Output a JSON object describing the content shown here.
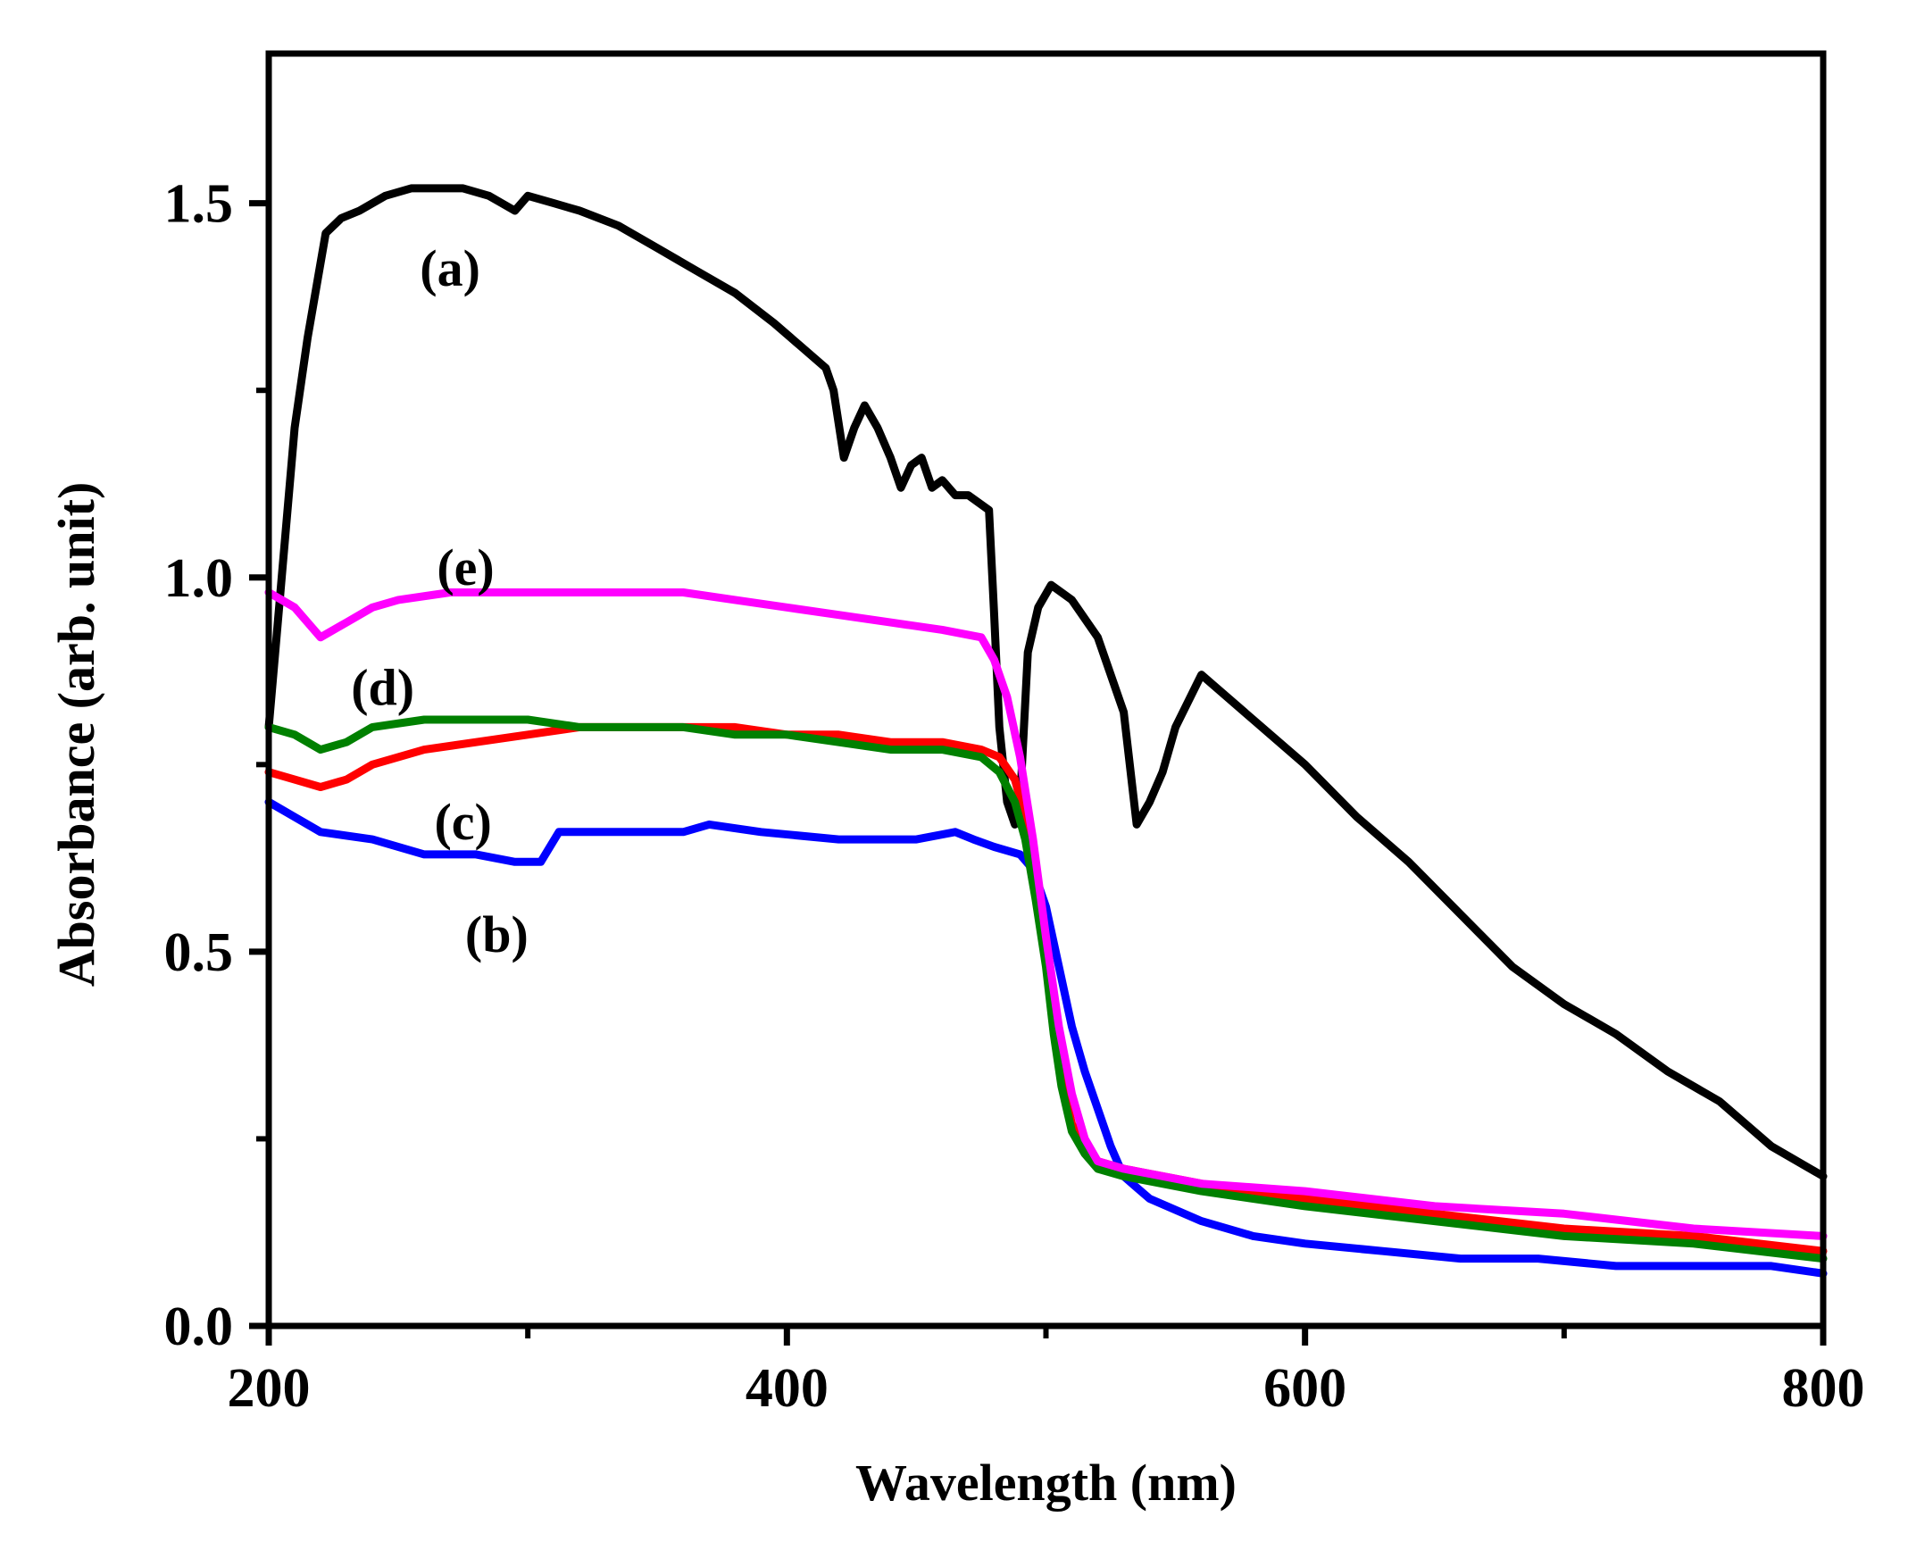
{
  "chart_data": {
    "type": "line",
    "title": "",
    "xlabel": "Wavelength (nm)",
    "ylabel": "Absorbance (arb. unit)",
    "xlim": [
      200,
      800
    ],
    "ylim": [
      0,
      1.7
    ],
    "x_ticks": [
      "200",
      "400",
      "600",
      "800"
    ],
    "y_ticks": [
      "0.0",
      "0.5",
      "1.0",
      "1.5"
    ],
    "x_tick_values": [
      200,
      400,
      600,
      800
    ],
    "y_tick_values": [
      0,
      0.5,
      1.0,
      1.5
    ],
    "grid": false,
    "legend": "inline labels",
    "series": [
      {
        "name": "(a)",
        "color": "#000000",
        "x": [
          200,
          205,
          210,
          215,
          222,
          228,
          235,
          245,
          255,
          265,
          275,
          285,
          290,
          295,
          300,
          310,
          320,
          335,
          350,
          365,
          380,
          395,
          405,
          415,
          418,
          422,
          426,
          430,
          435,
          440,
          444,
          448,
          452,
          456,
          460,
          465,
          470,
          478,
          480,
          482,
          485,
          488,
          490,
          493,
          497,
          502,
          510,
          520,
          530,
          535,
          540,
          545,
          550,
          560,
          580,
          600,
          620,
          640,
          660,
          680,
          700,
          720,
          740,
          760,
          780,
          800
        ],
        "values": [
          0.8,
          1.0,
          1.2,
          1.32,
          1.46,
          1.48,
          1.49,
          1.51,
          1.52,
          1.52,
          1.52,
          1.51,
          1.5,
          1.49,
          1.51,
          1.5,
          1.49,
          1.47,
          1.44,
          1.41,
          1.38,
          1.34,
          1.31,
          1.28,
          1.25,
          1.16,
          1.2,
          1.23,
          1.2,
          1.16,
          1.12,
          1.15,
          1.16,
          1.12,
          1.13,
          1.11,
          1.11,
          1.09,
          0.95,
          0.8,
          0.7,
          0.67,
          0.7,
          0.9,
          0.96,
          0.99,
          0.97,
          0.92,
          0.82,
          0.67,
          0.7,
          0.74,
          0.8,
          0.87,
          0.81,
          0.75,
          0.68,
          0.62,
          0.55,
          0.48,
          0.43,
          0.39,
          0.34,
          0.3,
          0.24,
          0.2
        ]
      },
      {
        "name": "(b)",
        "color": "#0000ff",
        "x": [
          200,
          210,
          220,
          240,
          260,
          280,
          295,
          305,
          312,
          330,
          360,
          370,
          390,
          420,
          450,
          465,
          472,
          480,
          490,
          495,
          500,
          505,
          510,
          515,
          520,
          525,
          530,
          540,
          560,
          580,
          600,
          630,
          660,
          690,
          720,
          750,
          780,
          800
        ],
        "values": [
          0.7,
          0.68,
          0.66,
          0.65,
          0.63,
          0.63,
          0.62,
          0.62,
          0.66,
          0.66,
          0.66,
          0.67,
          0.66,
          0.65,
          0.65,
          0.66,
          0.65,
          0.64,
          0.63,
          0.61,
          0.56,
          0.48,
          0.4,
          0.34,
          0.29,
          0.24,
          0.2,
          0.17,
          0.14,
          0.12,
          0.11,
          0.1,
          0.09,
          0.09,
          0.08,
          0.08,
          0.08,
          0.07
        ]
      },
      {
        "name": "(c)",
        "color": "#ff0000",
        "x": [
          200,
          210,
          220,
          230,
          240,
          260,
          280,
          300,
          320,
          340,
          360,
          380,
          400,
          420,
          440,
          460,
          475,
          482,
          488,
          492,
          496,
          500,
          503,
          506,
          510,
          515,
          520,
          530,
          560,
          600,
          650,
          700,
          750,
          800
        ],
        "values": [
          0.74,
          0.73,
          0.72,
          0.73,
          0.75,
          0.77,
          0.78,
          0.79,
          0.8,
          0.8,
          0.8,
          0.8,
          0.79,
          0.79,
          0.78,
          0.78,
          0.77,
          0.76,
          0.73,
          0.68,
          0.6,
          0.5,
          0.4,
          0.33,
          0.27,
          0.24,
          0.22,
          0.21,
          0.19,
          0.17,
          0.15,
          0.13,
          0.12,
          0.1
        ]
      },
      {
        "name": "(d)",
        "color": "#008000",
        "x": [
          200,
          210,
          220,
          230,
          240,
          260,
          280,
          300,
          320,
          340,
          360,
          380,
          400,
          420,
          440,
          460,
          475,
          482,
          488,
          492,
          496,
          500,
          503,
          506,
          510,
          515,
          520,
          530,
          560,
          600,
          650,
          700,
          750,
          800
        ],
        "values": [
          0.8,
          0.79,
          0.77,
          0.78,
          0.8,
          0.81,
          0.81,
          0.81,
          0.8,
          0.8,
          0.8,
          0.79,
          0.79,
          0.78,
          0.77,
          0.77,
          0.76,
          0.74,
          0.7,
          0.65,
          0.57,
          0.48,
          0.39,
          0.32,
          0.26,
          0.23,
          0.21,
          0.2,
          0.18,
          0.16,
          0.14,
          0.12,
          0.11,
          0.09
        ]
      },
      {
        "name": "(e)",
        "color": "#ff00ff",
        "x": [
          200,
          210,
          220,
          230,
          240,
          250,
          270,
          300,
          330,
          360,
          380,
          400,
          420,
          440,
          460,
          475,
          480,
          485,
          490,
          495,
          500,
          505,
          510,
          515,
          520,
          530,
          560,
          600,
          650,
          700,
          750,
          800
        ],
        "values": [
          0.98,
          0.96,
          0.92,
          0.94,
          0.96,
          0.97,
          0.98,
          0.98,
          0.98,
          0.98,
          0.97,
          0.96,
          0.95,
          0.94,
          0.93,
          0.92,
          0.89,
          0.84,
          0.76,
          0.65,
          0.52,
          0.4,
          0.31,
          0.25,
          0.22,
          0.21,
          0.19,
          0.18,
          0.16,
          0.15,
          0.13,
          0.12
        ]
      }
    ],
    "annotations": [
      {
        "text": "(a)",
        "series": "(a)",
        "x": 270,
        "y": 1.39
      },
      {
        "text": "(e)",
        "series": "(e)",
        "x": 276,
        "y": 0.99
      },
      {
        "text": "(d)",
        "series": "(d)",
        "x": 244,
        "y": 0.83
      },
      {
        "text": "(c)",
        "series": "(c)",
        "x": 275,
        "y": 0.65
      },
      {
        "text": "(b)",
        "series": "(b)",
        "x": 288,
        "y": 0.5
      }
    ]
  }
}
